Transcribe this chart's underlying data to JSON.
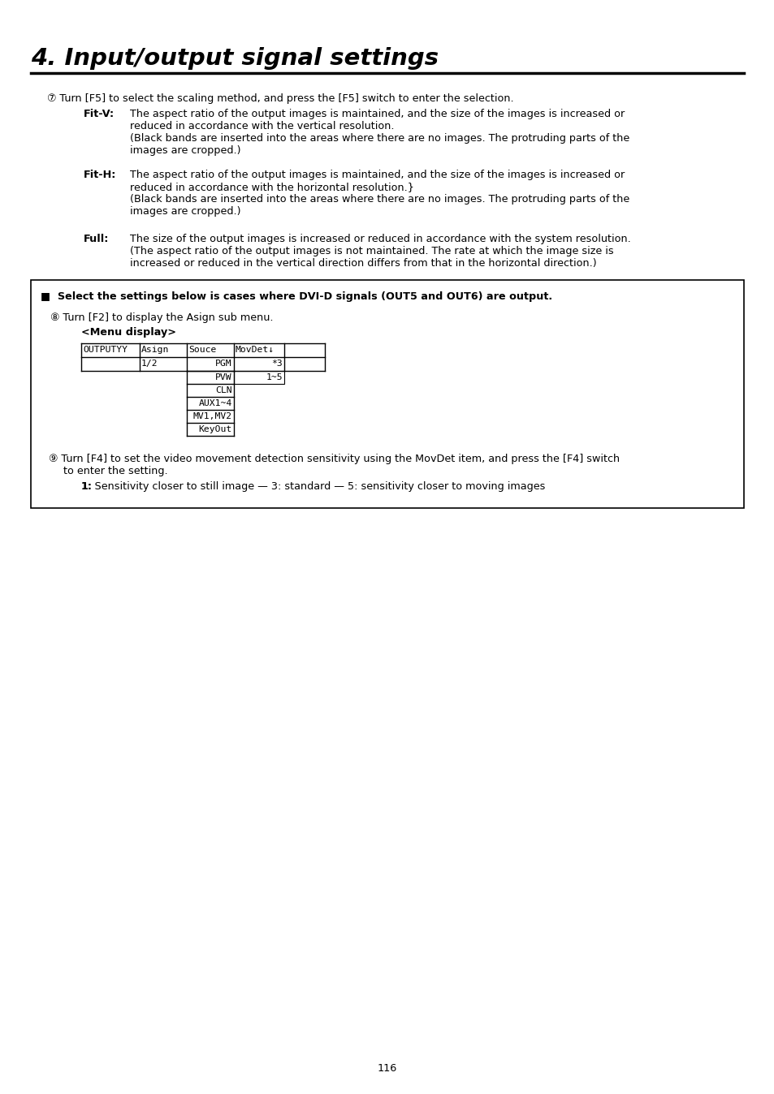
{
  "title": "4. Input/output signal settings",
  "page_number": "116",
  "background_color": "#ffffff",
  "text_color": "#000000",
  "title_fontsize": 21,
  "body_fontsize": 9.2,
  "mono_fontsize": 8.2,
  "section6_intro": "⑦ Turn [F5] to select the scaling method, and press the [F5] switch to enter the selection.",
  "fitv_label": "Fit-V:",
  "fitv_text1": "The aspect ratio of the output images is maintained, and the size of the images is increased or",
  "fitv_text2": "reduced in accordance with the vertical resolution.",
  "fitv_text3": "(Black bands are inserted into the areas where there are no images. The protruding parts of the",
  "fitv_text4": "images are cropped.)",
  "fith_label": "Fit-H:",
  "fith_text1": "The aspect ratio of the output images is maintained, and the size of the images is increased or",
  "fith_text2": "reduced in accordance with the horizontal resolution.}",
  "fith_text3": "(Black bands are inserted into the areas where there are no images. The protruding parts of the",
  "fith_text4": "images are cropped.)",
  "full_label": "Full:",
  "full_text1": "The size of the output images is increased or reduced in accordance with the system resolution.",
  "full_text2": "(The aspect ratio of the output images is not maintained. The rate at which the image size is",
  "full_text3": "increased or reduced in the vertical direction differs from that in the horizontal direction.)",
  "box_header": "■  Select the settings below is cases where DVI-D signals (OUT5 and OUT6) are output.",
  "section7_intro": "⑧ Turn [F2] to display the Asign sub menu.",
  "menu_display_label": "<Menu display>",
  "table_row1": [
    "OUTPUTYY",
    "Asign",
    "Souce",
    "MovDet↓",
    ""
  ],
  "table_row2": [
    "",
    "1/2",
    "PGM",
    "*3",
    ""
  ],
  "dropdown_items": [
    "PVW",
    "CLN",
    "AUX1~4",
    "MV1,MV2",
    "KeyOut"
  ],
  "dropdown_value": "1~5",
  "section8_intro": "⑨ Turn [F4] to set the video movement detection sensitivity using the MovDet item, and press the [F4] switch",
  "section8_intro2": "to enter the setting.",
  "section8_note": "1: Sensitivity closer to still image — 3: standard — 5: sensitivity closer to moving images"
}
